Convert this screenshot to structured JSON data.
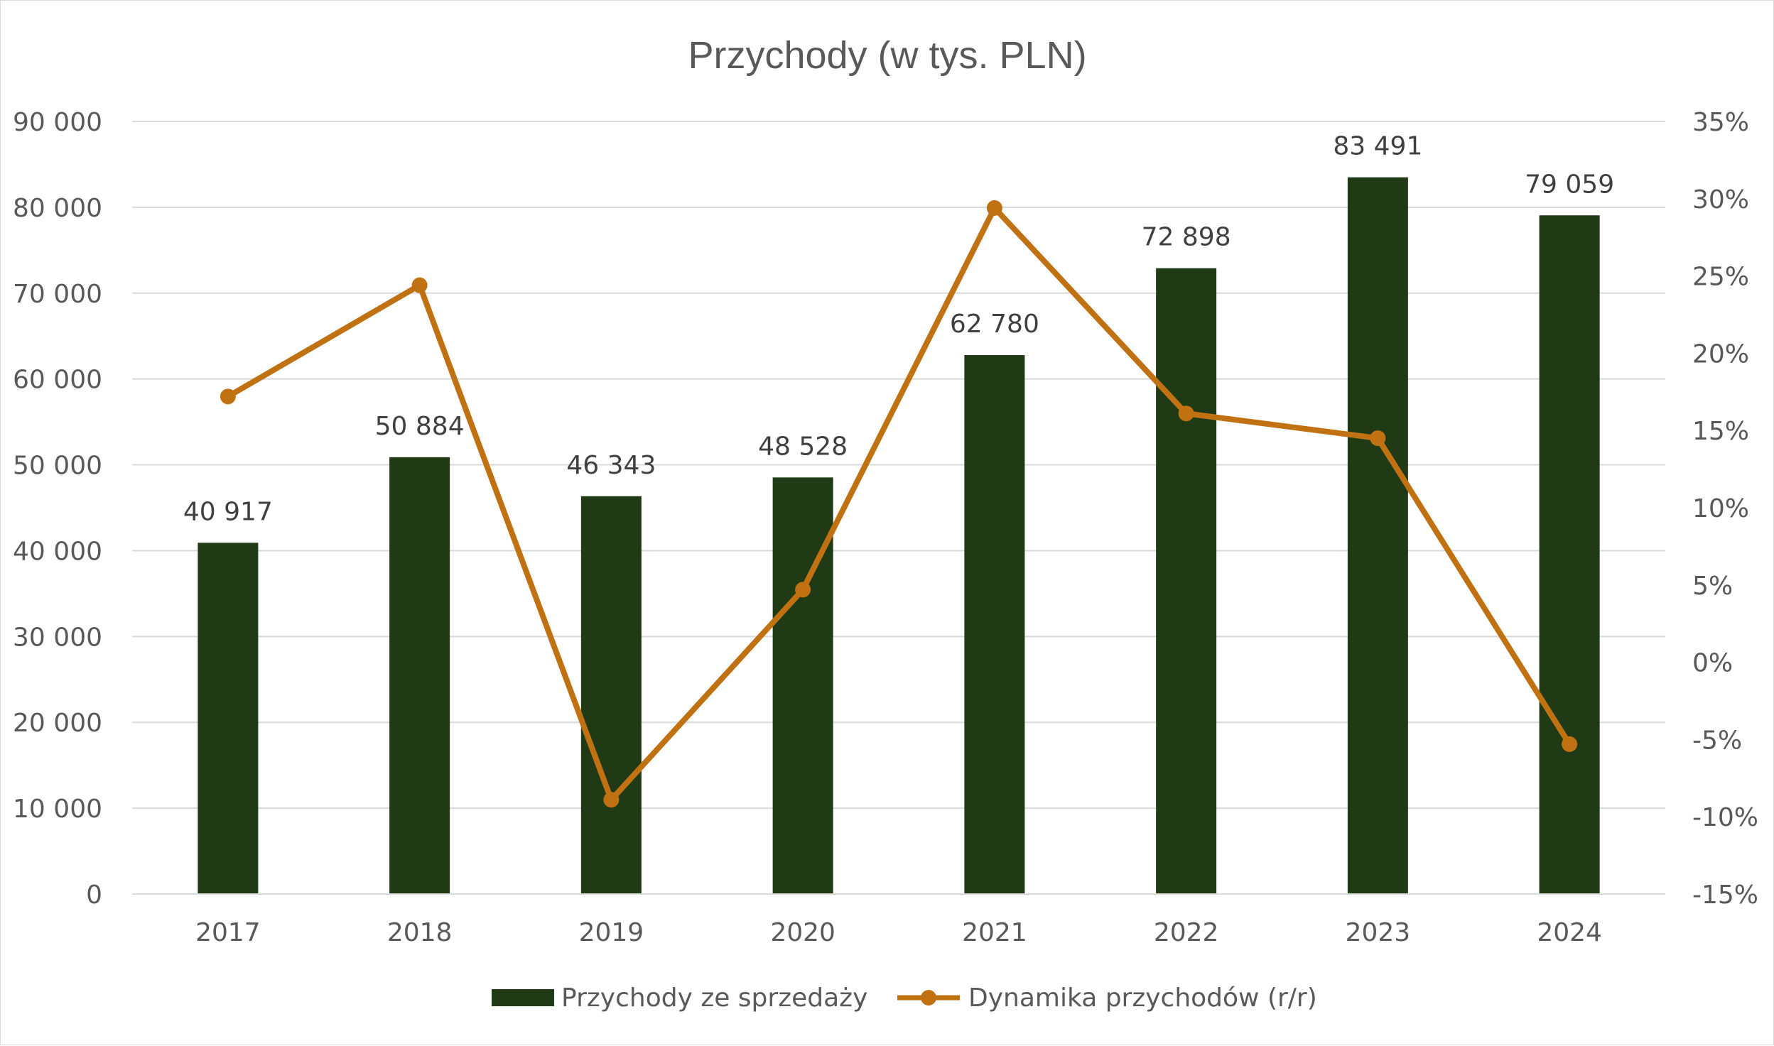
{
  "chart_data": {
    "type": "bar",
    "title": "Przychody (w tys. PLN)",
    "categories": [
      "2017",
      "2018",
      "2019",
      "2020",
      "2021",
      "2022",
      "2023",
      "2024"
    ],
    "series": [
      {
        "name": "Przychody ze sprzedaży",
        "type": "bar",
        "axis": "left",
        "color": "#203a16",
        "values": [
          40917,
          50884,
          46343,
          48528,
          62780,
          72898,
          83491,
          79059
        ],
        "labels": [
          "40 917",
          "50 884",
          "46 343",
          "48 528",
          "62 780",
          "72 898",
          "83 491",
          "79 059"
        ]
      },
      {
        "name": "Dynamika przychodów (r/r)",
        "type": "line",
        "axis": "right",
        "color": "#c07212",
        "values": [
          17.2,
          24.4,
          -8.9,
          4.7,
          29.4,
          16.1,
          14.5,
          -5.3
        ]
      }
    ],
    "y_left": {
      "min": 0,
      "max": 90000,
      "ticks": [
        0,
        10000,
        20000,
        30000,
        40000,
        50000,
        60000,
        70000,
        80000,
        90000
      ],
      "tick_labels": [
        "0",
        "10 000",
        "20 000",
        "30 000",
        "40 000",
        "50 000",
        "60 000",
        "70 000",
        "80 000",
        "90 000"
      ]
    },
    "y_right": {
      "min": -15,
      "max": 35,
      "ticks": [
        -15,
        -10,
        -5,
        0,
        5,
        10,
        15,
        20,
        25,
        30,
        35
      ],
      "tick_labels": [
        "-15%",
        "-10%",
        "-5%",
        "0%",
        "5%",
        "10%",
        "15%",
        "20%",
        "25%",
        "30%",
        "35%"
      ]
    },
    "grid": true,
    "legend_position": "bottom"
  }
}
